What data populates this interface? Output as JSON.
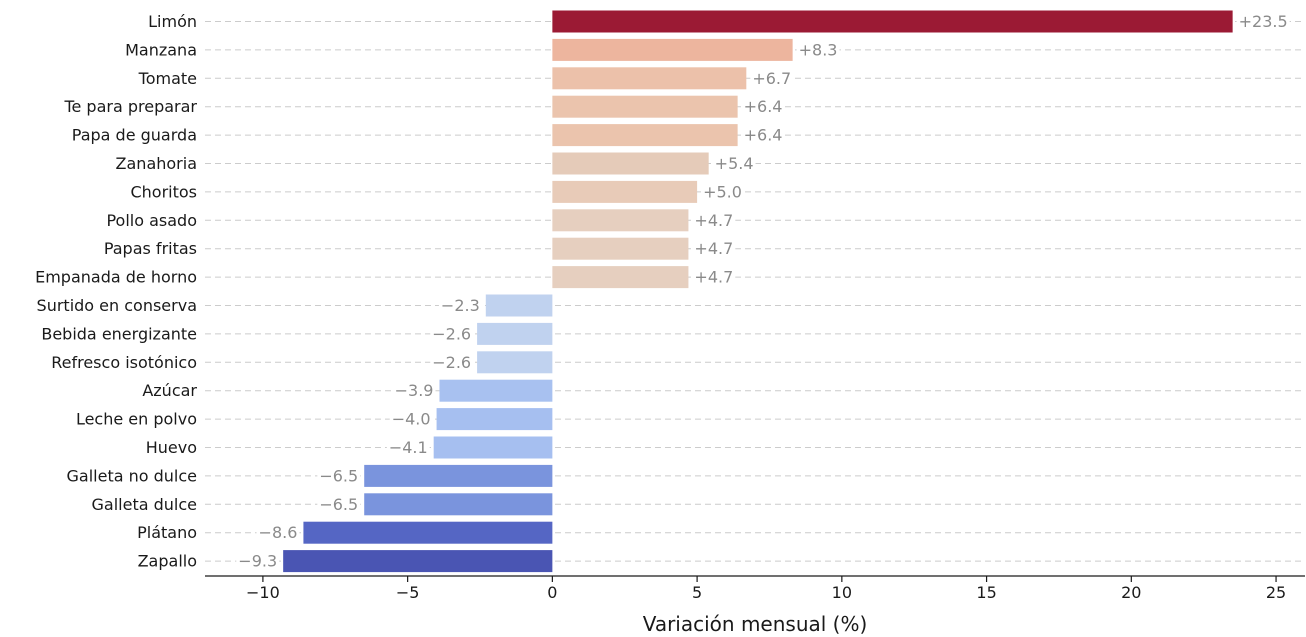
{
  "chart_data": {
    "type": "bar",
    "orientation": "horizontal",
    "xlabel": "Variación mensual (%)",
    "ylabel": "",
    "xlim": [
      -12,
      26
    ],
    "xticks": [
      -10,
      -5,
      0,
      5,
      10,
      15,
      20,
      25
    ],
    "xtick_labels": [
      "−10",
      "−5",
      "0",
      "5",
      "10",
      "15",
      "20",
      "25"
    ],
    "grid": "horizontal dashed",
    "categories": [
      "Limón",
      "Manzana",
      "Tomate",
      "Te para preparar",
      "Papa de guarda",
      "Zanahoria",
      "Choritos",
      "Pollo asado",
      "Papas fritas",
      "Empanada de horno",
      "Surtido en conserva",
      "Bebida energizante",
      "Refresco isotónico",
      "Azúcar",
      "Leche en polvo",
      "Huevo",
      "Galleta no dulce",
      "Galleta dulce",
      "Plátano",
      "Zapallo"
    ],
    "values": [
      23.5,
      8.3,
      6.7,
      6.4,
      6.4,
      5.4,
      5.0,
      4.7,
      4.7,
      4.7,
      -2.3,
      -2.6,
      -2.6,
      -3.9,
      -4.0,
      -4.1,
      -6.5,
      -6.5,
      -8.6,
      -9.3
    ],
    "value_labels": [
      "+23.5",
      "+8.3",
      "+6.7",
      "+6.4",
      "+6.4",
      "+5.4",
      "+5.0",
      "+4.7",
      "+4.7",
      "+4.7",
      "−2.3",
      "−2.6",
      "−2.6",
      "−3.9",
      "−4.0",
      "−4.1",
      "−6.5",
      "−6.5",
      "−8.6",
      "−9.3"
    ],
    "colors": [
      "#9b1a34",
      "#edb59e",
      "#ecc1aa",
      "#ebc4ad",
      "#ebc4ad",
      "#e5cbb9",
      "#e8cbb8",
      "#e6cfbf",
      "#e6cfbf",
      "#e6cfbf",
      "#c0d2ef",
      "#c0d2ef",
      "#c0d2ef",
      "#a8c1f0",
      "#a6bff0",
      "#a6bff0",
      "#7a94dd",
      "#7a94dd",
      "#5566c4",
      "#4a55b3"
    ]
  }
}
